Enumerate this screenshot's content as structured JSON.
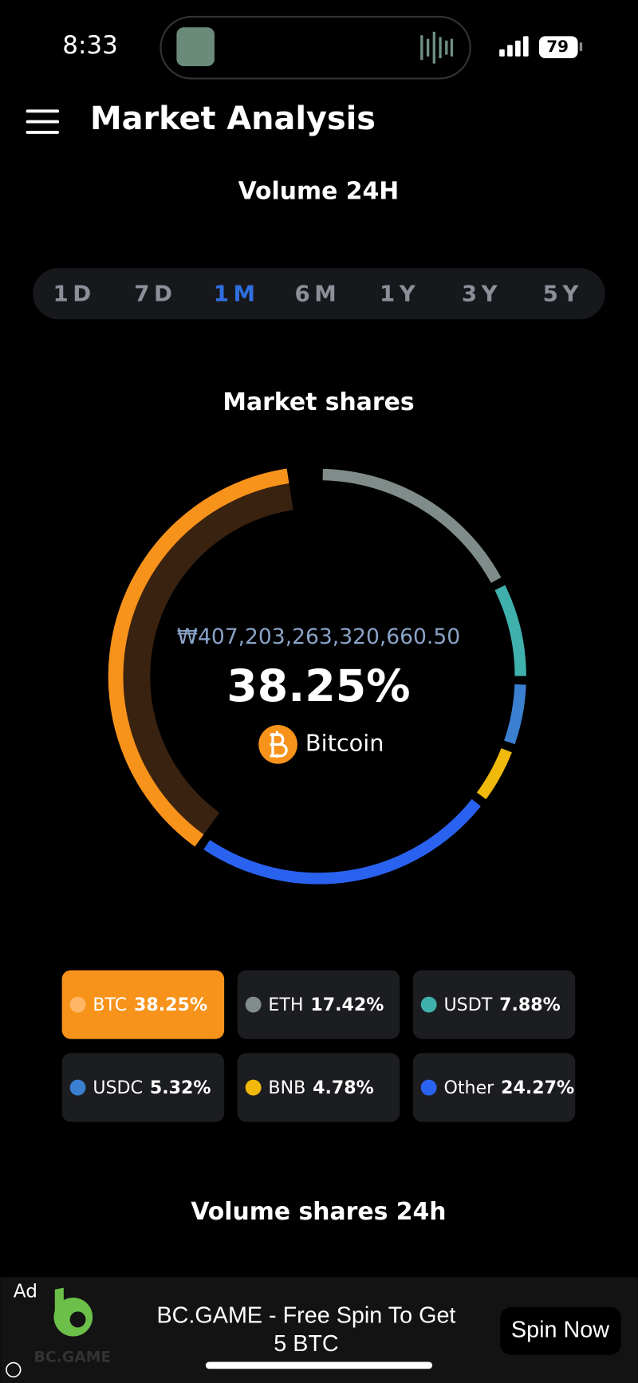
{
  "status_bar": {
    "time": "8:33",
    "battery": "79"
  },
  "header": {
    "title": "Market Analysis"
  },
  "volume_title": "Volume 24H",
  "periods": {
    "options": [
      "1D",
      "7D",
      "1M",
      "6M",
      "1Y",
      "3Y",
      "5Y"
    ],
    "active_index": 2
  },
  "chart_data": {
    "type": "donut",
    "title": "Market shares",
    "categories": [
      "BTC",
      "ETH",
      "USDT",
      "USDC",
      "BNB",
      "Other"
    ],
    "values": [
      38.25,
      17.42,
      7.88,
      5.32,
      4.78,
      24.27
    ],
    "value_labels": [
      "38.25%",
      "17.42%",
      "7.88%",
      "5.32%",
      "4.78%",
      "24.27%"
    ],
    "colors": [
      "#f7931a",
      "#7f8c8a",
      "#3fb0ac",
      "#3a7fd0",
      "#f0b90b",
      "#2a62f0"
    ],
    "center": {
      "amount": "₩407,203,263,320,660.50",
      "name": "Bitcoin"
    }
  },
  "section_title": "Volume shares 24h",
  "ad": {
    "label": "Ad",
    "brand": "BC.GAME",
    "text_lines": [
      "BC.GAME - Free Spin To Get",
      "5 BTC"
    ],
    "button": "Spin Now"
  }
}
